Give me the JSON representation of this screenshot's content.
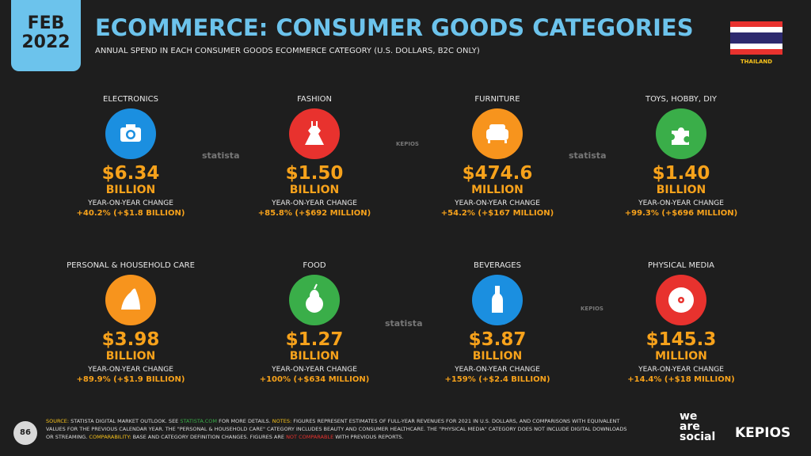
{
  "header": {
    "badge": [
      "FEB",
      "2022"
    ],
    "title": "ECOMMERCE: CONSUMER GOODS CATEGORIES",
    "subtitle": "ANNUAL SPEND IN EACH CONSUMER GOODS ECOMMERCE CATEGORY (U.S. DOLLARS, B2C ONLY)",
    "country": "THAILAND"
  },
  "categories": [
    {
      "name": "ELECTRONICS",
      "value": "$6.34",
      "unit": "BILLION",
      "change_label": "YEAR-ON-YEAR CHANGE",
      "change": "+40.2% (+$1.8 BILLION)",
      "color": "#1b8fe0"
    },
    {
      "name": "FASHION",
      "value": "$1.50",
      "unit": "BILLION",
      "change_label": "YEAR-ON-YEAR CHANGE",
      "change": "+85.8% (+$692 MILLION)",
      "color": "#e8322e"
    },
    {
      "name": "FURNITURE",
      "value": "$474.6",
      "unit": "MILLION",
      "change_label": "YEAR-ON-YEAR CHANGE",
      "change": "+54.2% (+$167 MILLION)",
      "color": "#f7941d"
    },
    {
      "name": "TOYS, HOBBY, DIY",
      "value": "$1.40",
      "unit": "BILLION",
      "change_label": "YEAR-ON-YEAR CHANGE",
      "change": "+99.3% (+$696 MILLION)",
      "color": "#3aae49"
    },
    {
      "name": "PERSONAL & HOUSEHOLD CARE",
      "value": "$3.98",
      "unit": "BILLION",
      "change_label": "YEAR-ON-YEAR CHANGE",
      "change": "+89.9% (+$1.9 BILLION)",
      "color": "#f7941d"
    },
    {
      "name": "FOOD",
      "value": "$1.27",
      "unit": "BILLION",
      "change_label": "YEAR-ON-YEAR CHANGE",
      "change": "+100% (+$634 MILLION)",
      "color": "#3aae49"
    },
    {
      "name": "BEVERAGES",
      "value": "$3.87",
      "unit": "BILLION",
      "change_label": "YEAR-ON-YEAR CHANGE",
      "change": "+159% (+$2.4 BILLION)",
      "color": "#1b8fe0"
    },
    {
      "name": "PHYSICAL MEDIA",
      "value": "$145.3",
      "unit": "MILLION",
      "change_label": "YEAR-ON-YEAR CHANGE",
      "change": "+14.4% (+$18 MILLION)",
      "color": "#e8322e"
    }
  ],
  "watermarks": [
    "statista",
    "KEPIOS",
    "statista",
    "statista",
    "KEPIOS"
  ],
  "footer": {
    "page": "86",
    "notes": [
      {
        "text": "SOURCE:",
        "color": "#f7c21b"
      },
      {
        "text": " STATISTA DIGITAL MARKET OUTLOOK. SEE ",
        "color": "#dddddd"
      },
      {
        "text": "STATISTA.COM",
        "color": "#3aae49"
      },
      {
        "text": " FOR MORE DETAILS. ",
        "color": "#dddddd"
      },
      {
        "text": "NOTES:",
        "color": "#f7c21b"
      },
      {
        "text": " FIGURES REPRESENT ESTIMATES OF FULL-YEAR REVENUES FOR 2021 IN U.S. DOLLARS, AND COMPARISONS WITH EQUIVALENT VALUES FOR THE PREVIOUS CALENDAR YEAR. THE \"PERSONAL & HOUSEHOLD CARE\" CATEGORY INCLUDES BEAUTY AND CONSUMER HEALTHCARE. THE \"PHYSICAL MEDIA\" CATEGORY DOES NOT INCLUDE DIGITAL DOWNLOADS OR STREAMING. ",
        "color": "#dddddd"
      },
      {
        "text": "COMPARABILITY:",
        "color": "#f7c21b"
      },
      {
        "text": " BASE AND CATEGORY DEFINITION CHANGES. FIGURES ARE ",
        "color": "#dddddd"
      },
      {
        "text": "NOT COMPARABLE",
        "color": "#e8322e"
      },
      {
        "text": " WITH PREVIOUS REPORTS.",
        "color": "#dddddd"
      }
    ],
    "logo_left": [
      "we",
      "are",
      "social"
    ],
    "logo_right": "KEPIOS"
  }
}
